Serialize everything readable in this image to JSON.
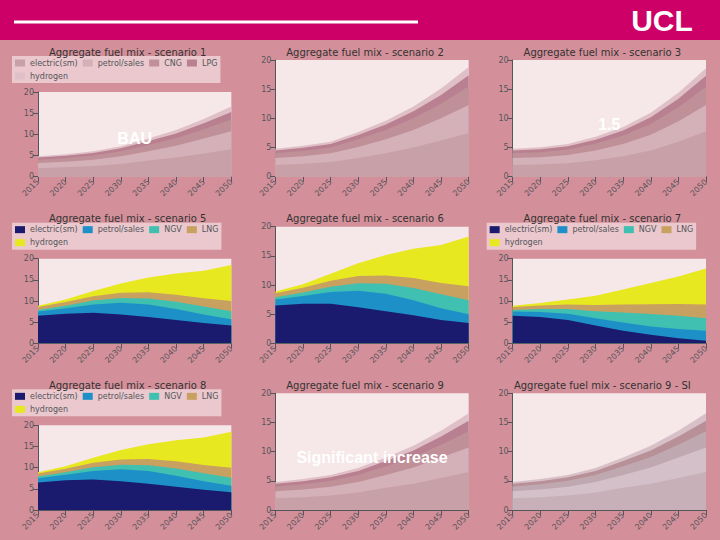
{
  "annotations": [
    "UCL"
  ],
  "chart_data": [
    {
      "type": "area",
      "title": "Aggregate fuel mix - scenario 1",
      "stacked": true,
      "x": [
        2015,
        2020,
        2025,
        2030,
        2035,
        2040,
        2045,
        2050
      ],
      "series": [
        {
          "name": "electric(sm)",
          "color": "#c8a0a8",
          "values": [
            2.0,
            2.2,
            2.5,
            3.0,
            3.8,
            4.5,
            5.5,
            6.5
          ]
        },
        {
          "name": "petrol/sales",
          "color": "#d4b0b8",
          "values": [
            1.2,
            1.3,
            1.5,
            1.8,
            2.2,
            2.8,
            3.5,
            4.2
          ]
        },
        {
          "name": "CNG",
          "color": "#c09098",
          "values": [
            0.8,
            0.9,
            1.0,
            1.2,
            1.5,
            1.8,
            2.2,
            2.8
          ]
        },
        {
          "name": "LPG",
          "color": "#b88090",
          "values": [
            0.5,
            0.55,
            0.6,
            0.7,
            0.9,
            1.1,
            1.4,
            1.8
          ]
        },
        {
          "name": "hydrogen",
          "color": "#e0c0c8",
          "values": [
            0.3,
            0.35,
            0.4,
            0.5,
            0.6,
            0.8,
            1.0,
            1.3
          ]
        }
      ],
      "xlim": [
        2015,
        2050
      ],
      "xticks": [
        2015,
        2020,
        2025,
        2030,
        2035,
        2040,
        2045,
        2050
      ],
      "ylim": [
        0,
        20
      ],
      "yticks": [
        0,
        5,
        10,
        15,
        20
      ],
      "grid": false,
      "legend": "upper left",
      "annotations": [
        "BAU"
      ]
    },
    {
      "type": "area",
      "title": "Aggregate fuel mix - scenario 2",
      "stacked": true,
      "x": [
        2015,
        2020,
        2025,
        2030,
        2035,
        2040,
        2045,
        2050
      ],
      "series": [
        {
          "color": "#c8a0a8",
          "values": [
            2.0,
            2.2,
            2.5,
            3.2,
            4.0,
            5.0,
            6.2,
            7.5
          ]
        },
        {
          "color": "#d4b0b8",
          "values": [
            1.2,
            1.3,
            1.5,
            1.9,
            2.4,
            3.0,
            3.8,
            4.8
          ]
        },
        {
          "color": "#c09098",
          "values": [
            0.8,
            0.9,
            1.0,
            1.3,
            1.6,
            2.0,
            2.5,
            3.2
          ]
        },
        {
          "color": "#b88090",
          "values": [
            0.5,
            0.55,
            0.6,
            0.75,
            0.95,
            1.2,
            1.5,
            1.9
          ]
        },
        {
          "color": "#e0c0c8",
          "values": [
            0.3,
            0.35,
            0.4,
            0.5,
            0.65,
            0.85,
            1.1,
            1.4
          ]
        }
      ],
      "xlim": [
        2015,
        2050
      ],
      "xticks": [
        2015,
        2020,
        2025,
        2030,
        2035,
        2040,
        2045,
        2050
      ],
      "ylim": [
        0,
        20
      ],
      "yticks": [
        0,
        5,
        10,
        15,
        20
      ],
      "grid": false
    },
    {
      "type": "area",
      "title": "Aggregate fuel mix - scenario 3",
      "stacked": true,
      "x": [
        2015,
        2020,
        2025,
        2030,
        2035,
        2040,
        2045,
        2050
      ],
      "series": [
        {
          "color": "#c8a0a8",
          "values": [
            2.0,
            2.1,
            2.3,
            2.8,
            3.5,
            4.5,
            6.0,
            7.8
          ]
        },
        {
          "color": "#d4b0b8",
          "values": [
            1.2,
            1.25,
            1.4,
            1.7,
            2.1,
            2.7,
            3.5,
            4.5
          ]
        },
        {
          "color": "#c09098",
          "values": [
            0.8,
            0.85,
            0.95,
            1.15,
            1.45,
            1.85,
            2.4,
            3.1
          ]
        },
        {
          "color": "#b88090",
          "values": [
            0.5,
            0.52,
            0.58,
            0.7,
            0.88,
            1.12,
            1.45,
            1.88
          ]
        },
        {
          "color": "#e0c0c8",
          "values": [
            0.3,
            0.32,
            0.38,
            0.48,
            0.6,
            0.78,
            1.02,
            1.32
          ]
        }
      ],
      "xlim": [
        2015,
        2050
      ],
      "xticks": [
        2015,
        2020,
        2025,
        2030,
        2035,
        2040,
        2045,
        2050
      ],
      "ylim": [
        0,
        20
      ],
      "yticks": [
        0,
        5,
        10,
        15,
        20
      ],
      "grid": false,
      "annotations": [
        "1.5"
      ]
    },
    {
      "type": "area",
      "title": "Aggregate fuel mix - scenario 5",
      "stacked": true,
      "x": [
        2015,
        2020,
        2025,
        2030,
        2035,
        2040,
        2045,
        2050
      ],
      "series": [
        {
          "name": "electric(sm)",
          "color": "#1a1a6e",
          "values": [
            6.5,
            7.0,
            7.2,
            6.8,
            6.2,
            5.5,
            4.8,
            4.2
          ]
        },
        {
          "name": "petrol/sales",
          "color": "#1e90c8",
          "values": [
            1.0,
            1.3,
            2.0,
            2.8,
            3.0,
            2.6,
            2.0,
            1.5
          ]
        },
        {
          "name": "NGV",
          "color": "#40c0b0",
          "values": [
            0.4,
            0.6,
            0.9,
            1.1,
            1.4,
            1.7,
            1.9,
            1.9
          ]
        },
        {
          "name": "LNG",
          "color": "#c8a060",
          "values": [
            0.7,
            0.85,
            1.05,
            1.25,
            1.45,
            1.7,
            1.95,
            2.4
          ]
        },
        {
          "name": "hydrogen",
          "color": "#e8e820",
          "values": [
            0.3,
            0.6,
            1.2,
            2.2,
            3.5,
            5.0,
            6.5,
            8.5
          ]
        }
      ],
      "xlim": [
        2015,
        2050
      ],
      "xticks": [
        2015,
        2020,
        2025,
        2030,
        2035,
        2040,
        2045,
        2050
      ],
      "ylim": [
        0,
        20
      ],
      "yticks": [
        0,
        5,
        10,
        15,
        20
      ],
      "grid": false,
      "legend": "upper left"
    },
    {
      "type": "area",
      "title": "Aggregate fuel mix - scenario 6",
      "stacked": true,
      "x": [
        2015,
        2020,
        2025,
        2030,
        2035,
        2040,
        2045,
        2050
      ],
      "series": [
        {
          "color": "#1a1a6e",
          "values": [
            6.5,
            6.8,
            6.8,
            6.2,
            5.5,
            4.8,
            4.0,
            3.5
          ]
        },
        {
          "color": "#1e90c8",
          "values": [
            1.0,
            1.3,
            2.0,
            2.8,
            3.0,
            2.6,
            2.0,
            1.5
          ]
        },
        {
          "color": "#40c0b0",
          "values": [
            0.4,
            0.6,
            0.9,
            1.3,
            1.7,
            2.1,
            2.4,
            2.4
          ]
        },
        {
          "color": "#c8a060",
          "values": [
            0.7,
            0.85,
            1.05,
            1.25,
            1.45,
            1.7,
            1.95,
            2.4
          ]
        },
        {
          "color": "#e8e820",
          "values": [
            0.3,
            0.6,
            1.2,
            2.2,
            3.5,
            5.0,
            6.5,
            8.5
          ]
        }
      ],
      "xlim": [
        2015,
        2050
      ],
      "xticks": [
        2015,
        2020,
        2025,
        2030,
        2035,
        2040,
        2045,
        2050
      ],
      "ylim": [
        0,
        20
      ],
      "yticks": [
        0,
        5,
        10,
        15,
        20
      ],
      "grid": false
    },
    {
      "type": "area",
      "title": "Aggregate fuel mix - scenario 7",
      "stacked": true,
      "x": [
        2015,
        2020,
        2025,
        2030,
        2035,
        2040,
        2045,
        2050
      ],
      "series": [
        {
          "name": "electric(sm)",
          "color": "#1a1a6e",
          "values": [
            6.5,
            6.2,
            5.5,
            4.2,
            3.0,
            2.0,
            1.2,
            0.6
          ]
        },
        {
          "name": "petrol/sales",
          "color": "#1e90c8",
          "values": [
            1.0,
            1.2,
            1.5,
            1.7,
            1.9,
            2.0,
            2.2,
            2.4
          ]
        },
        {
          "name": "NGV",
          "color": "#40c0b0",
          "values": [
            0.4,
            0.7,
            1.1,
            1.7,
            2.4,
            2.9,
            3.1,
            2.9
          ]
        },
        {
          "name": "LNG",
          "color": "#c8a060",
          "values": [
            0.7,
            0.85,
            1.05,
            1.45,
            1.9,
            2.35,
            2.8,
            3.3
          ]
        },
        {
          "name": "hydrogen",
          "color": "#e8e820",
          "values": [
            0.3,
            0.6,
            1.2,
            2.2,
            3.5,
            5.0,
            6.5,
            8.5
          ]
        }
      ],
      "xlim": [
        2015,
        2050
      ],
      "xticks": [
        2015,
        2020,
        2025,
        2030,
        2035,
        2040,
        2045,
        2050
      ],
      "ylim": [
        0,
        20
      ],
      "yticks": [
        0,
        5,
        10,
        15,
        20
      ],
      "grid": false,
      "legend": "upper left"
    },
    {
      "type": "area",
      "title": "Aggregate fuel mix - scenario 8",
      "stacked": true,
      "x": [
        2015,
        2020,
        2025,
        2030,
        2035,
        2040,
        2045,
        2050
      ],
      "series": [
        {
          "name": "electric(sm)",
          "color": "#1a1a6e",
          "values": [
            6.5,
            7.0,
            7.2,
            6.8,
            6.2,
            5.5,
            4.8,
            4.2
          ]
        },
        {
          "name": "petrol/sales",
          "color": "#1e90c8",
          "values": [
            1.0,
            1.3,
            2.0,
            2.8,
            3.0,
            2.6,
            2.0,
            1.5
          ]
        },
        {
          "name": "NGV",
          "color": "#40c0b0",
          "values": [
            0.4,
            0.6,
            0.9,
            1.1,
            1.4,
            1.7,
            1.9,
            1.9
          ]
        },
        {
          "name": "LNG",
          "color": "#c8a060",
          "values": [
            0.7,
            0.85,
            1.05,
            1.25,
            1.45,
            1.7,
            1.95,
            2.4
          ]
        },
        {
          "name": "hydrogen",
          "color": "#e8e820",
          "values": [
            0.3,
            0.6,
            1.2,
            2.2,
            3.5,
            5.0,
            6.5,
            8.5
          ]
        }
      ],
      "xlim": [
        2015,
        2050
      ],
      "xticks": [
        2015,
        2020,
        2025,
        2030,
        2035,
        2040,
        2045,
        2050
      ],
      "ylim": [
        0,
        20
      ],
      "yticks": [
        0,
        5,
        10,
        15,
        20
      ],
      "grid": false,
      "legend": "upper left"
    },
    {
      "type": "area",
      "title": "Aggregate fuel mix - scenario 9",
      "stacked": true,
      "x": [
        2015,
        2020,
        2025,
        2030,
        2035,
        2040,
        2045,
        2050
      ],
      "series": [
        {
          "color": "#c8a0a8",
          "values": [
            2.0,
            2.2,
            2.5,
            3.0,
            3.8,
            4.5,
            5.5,
            6.5
          ]
        },
        {
          "color": "#d4b0b8",
          "values": [
            1.2,
            1.3,
            1.5,
            1.8,
            2.2,
            2.8,
            3.5,
            4.2
          ]
        },
        {
          "color": "#c09098",
          "values": [
            0.8,
            0.9,
            1.0,
            1.2,
            1.5,
            1.8,
            2.2,
            2.8
          ]
        },
        {
          "color": "#b88090",
          "values": [
            0.5,
            0.55,
            0.6,
            0.7,
            0.9,
            1.1,
            1.4,
            1.8
          ]
        },
        {
          "color": "#e0c0c8",
          "values": [
            0.3,
            0.35,
            0.4,
            0.5,
            0.6,
            0.8,
            1.0,
            1.3
          ]
        }
      ],
      "xlim": [
        2015,
        2050
      ],
      "xticks": [
        2015,
        2020,
        2025,
        2030,
        2035,
        2040,
        2045,
        2050
      ],
      "ylim": [
        0,
        20
      ],
      "yticks": [
        0,
        5,
        10,
        15,
        20
      ],
      "grid": false,
      "annotations": [
        "Significant increase"
      ]
    },
    {
      "type": "area",
      "title": "Aggregate fuel mix - scenario 9 - SI",
      "stacked": true,
      "x": [
        2015,
        2020,
        2025,
        2030,
        2035,
        2040,
        2045,
        2050
      ],
      "series": [
        {
          "color": "#c8b0b8",
          "values": [
            2.0,
            2.2,
            2.5,
            3.0,
            3.8,
            4.5,
            5.5,
            6.5
          ]
        },
        {
          "color": "#d4c0c8",
          "values": [
            1.2,
            1.3,
            1.5,
            1.8,
            2.2,
            2.8,
            3.5,
            4.2
          ]
        },
        {
          "color": "#c0a8b0",
          "values": [
            0.8,
            0.9,
            1.0,
            1.2,
            1.5,
            1.8,
            2.2,
            2.8
          ]
        },
        {
          "color": "#b89098",
          "values": [
            0.5,
            0.55,
            0.6,
            0.7,
            0.9,
            1.1,
            1.4,
            1.8
          ]
        },
        {
          "color": "#d8c0c8",
          "values": [
            0.3,
            0.35,
            0.4,
            0.5,
            0.6,
            0.8,
            1.0,
            1.3
          ]
        }
      ],
      "xlim": [
        2015,
        2050
      ],
      "xticks": [
        2015,
        2020,
        2025,
        2030,
        2035,
        2040,
        2045,
        2050
      ],
      "ylim": [
        0,
        20
      ],
      "yticks": [
        0,
        5,
        10,
        15,
        20
      ],
      "grid": false
    }
  ]
}
